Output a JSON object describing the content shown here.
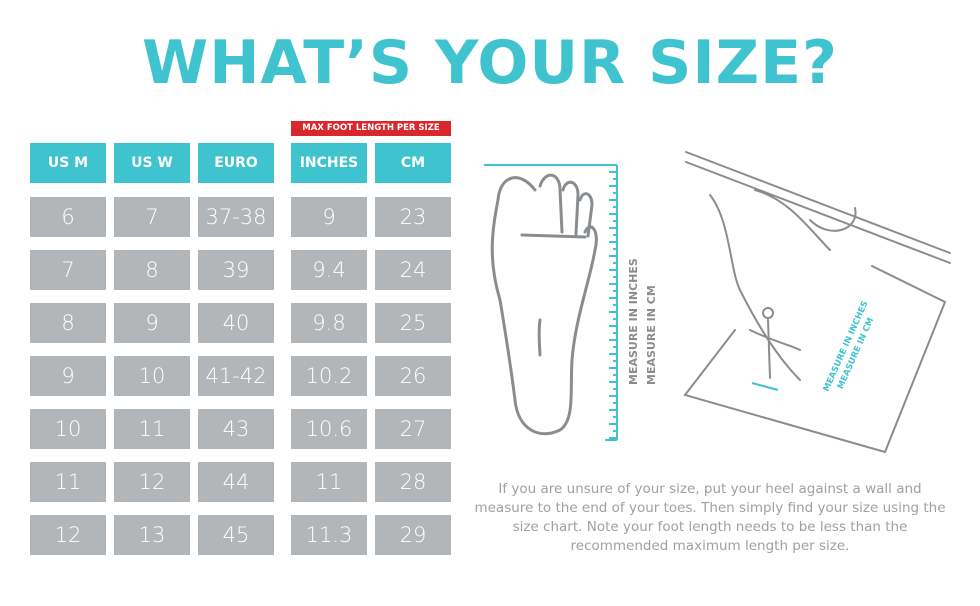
{
  "title": "WHAT’S YOUR SIZE?",
  "max_label": "MAX FOOT LENGTH PER SIZE",
  "headers": [
    "US M",
    "US W",
    "EURO",
    "INCHES",
    "CM"
  ],
  "rows": [
    [
      "6",
      "7",
      "37-38",
      "9",
      "23"
    ],
    [
      "7",
      "8",
      "39",
      "9.4",
      "24"
    ],
    [
      "8",
      "9",
      "40",
      "9.8",
      "25"
    ],
    [
      "9",
      "10",
      "41-42",
      "10.2",
      "26"
    ],
    [
      "10",
      "11",
      "43",
      "10.6",
      "27"
    ],
    [
      "11",
      "12",
      "44",
      "11",
      "28"
    ],
    [
      "12",
      "13",
      "45",
      "11.3",
      "29"
    ]
  ],
  "foot_labels": {
    "line1": "MEASURE IN INCHES",
    "line2": "MEASURE IN CM"
  },
  "hand_labels": {
    "line1": "MEASURE IN INCHES",
    "line2": "MEASURE IN CM"
  },
  "instructions": "If you are unsure of your size, put your heel against a wall and measure to the end of your toes. Then simply find your size using the size chart. Note your foot length needs to be less than the recommended maximum length per size.",
  "colors": {
    "accent": "#3fc3cf",
    "cell": "#b3b6b9",
    "label": "#d8272d"
  }
}
